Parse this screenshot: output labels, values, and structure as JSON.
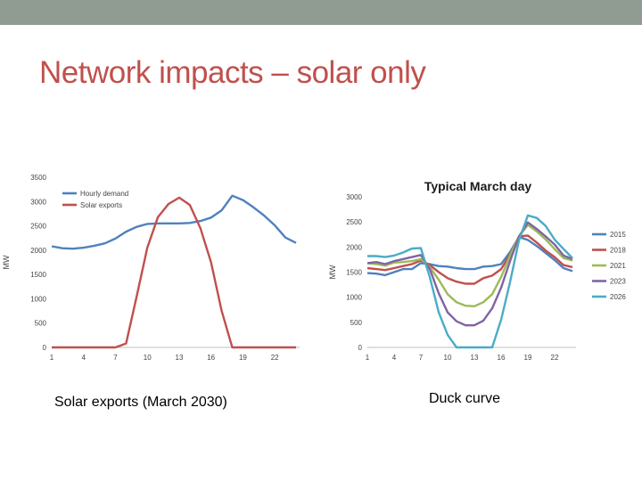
{
  "slide": {
    "title": "Network impacts – solar only",
    "caption_left": "Solar exports (March 2030)",
    "caption_right": "Duck curve",
    "colors": {
      "topbar": "#909c92",
      "title": "#c0504d"
    }
  },
  "chart_data": [
    {
      "type": "line",
      "title": "",
      "xlabel": "",
      "ylabel": "MW",
      "ylim": [
        0,
        3500
      ],
      "yticks": [
        0,
        500,
        1000,
        1500,
        2000,
        2500,
        3000,
        3500
      ],
      "xticks": [
        1,
        4,
        7,
        10,
        13,
        16,
        19,
        22
      ],
      "legend_position": "top-left",
      "x": [
        1,
        2,
        3,
        4,
        5,
        6,
        7,
        8,
        9,
        10,
        11,
        12,
        13,
        14,
        15,
        16,
        17,
        18,
        19,
        20,
        21,
        22,
        23,
        24
      ],
      "series": [
        {
          "name": "Hourly demand",
          "color": "#4f81bd",
          "values": [
            2080,
            2040,
            2030,
            2050,
            2090,
            2140,
            2240,
            2380,
            2480,
            2540,
            2550,
            2550,
            2550,
            2560,
            2600,
            2670,
            2820,
            3120,
            3030,
            2880,
            2710,
            2510,
            2260,
            2150
          ]
        },
        {
          "name": "Solar exports",
          "color": "#c0504d",
          "values": [
            0,
            0,
            0,
            0,
            0,
            0,
            0,
            80,
            1050,
            2050,
            2680,
            2950,
            3080,
            2930,
            2450,
            1750,
            750,
            0,
            0,
            0,
            0,
            0,
            0,
            0
          ]
        }
      ]
    },
    {
      "type": "line",
      "title": "Typical March day",
      "xlabel": "",
      "ylabel": "MW",
      "ylim": [
        0,
        3000
      ],
      "yticks": [
        0,
        500,
        1000,
        1500,
        2000,
        2500,
        3000
      ],
      "xticks": [
        1,
        4,
        7,
        10,
        13,
        16,
        19,
        22
      ],
      "legend_position": "right",
      "x": [
        1,
        2,
        3,
        4,
        5,
        6,
        7,
        8,
        9,
        10,
        11,
        12,
        13,
        14,
        15,
        16,
        17,
        18,
        19,
        20,
        21,
        22,
        23,
        24
      ],
      "series": [
        {
          "name": "2015",
          "color": "#4f81bd",
          "values": [
            1480,
            1470,
            1440,
            1500,
            1560,
            1560,
            1680,
            1660,
            1620,
            1610,
            1580,
            1560,
            1560,
            1610,
            1620,
            1660,
            1900,
            2200,
            2140,
            2020,
            1880,
            1740,
            1580,
            1520
          ]
        },
        {
          "name": "2018",
          "color": "#c0504d",
          "values": [
            1580,
            1560,
            1540,
            1580,
            1620,
            1660,
            1730,
            1640,
            1500,
            1380,
            1310,
            1270,
            1270,
            1380,
            1430,
            1560,
            1850,
            2210,
            2230,
            2090,
            1930,
            1800,
            1640,
            1600
          ]
        },
        {
          "name": "2021",
          "color": "#9bbb59",
          "values": [
            1680,
            1660,
            1630,
            1690,
            1700,
            1720,
            1760,
            1600,
            1350,
            1060,
            900,
            830,
            820,
            900,
            1060,
            1400,
            1830,
            2210,
            2440,
            2310,
            2150,
            1960,
            1780,
            1730
          ]
        },
        {
          "name": "2023",
          "color": "#8064a2",
          "values": [
            1680,
            1700,
            1660,
            1720,
            1760,
            1800,
            1840,
            1560,
            1080,
            700,
            520,
            440,
            440,
            530,
            780,
            1190,
            1720,
            2210,
            2490,
            2360,
            2210,
            2050,
            1830,
            1760
          ]
        },
        {
          "name": "2026",
          "color": "#4bacc6",
          "values": [
            1820,
            1820,
            1800,
            1830,
            1890,
            1970,
            1980,
            1400,
            700,
            250,
            0,
            0,
            0,
            0,
            0,
            550,
            1300,
            2130,
            2630,
            2580,
            2420,
            2150,
            1960,
            1780
          ]
        }
      ]
    }
  ]
}
